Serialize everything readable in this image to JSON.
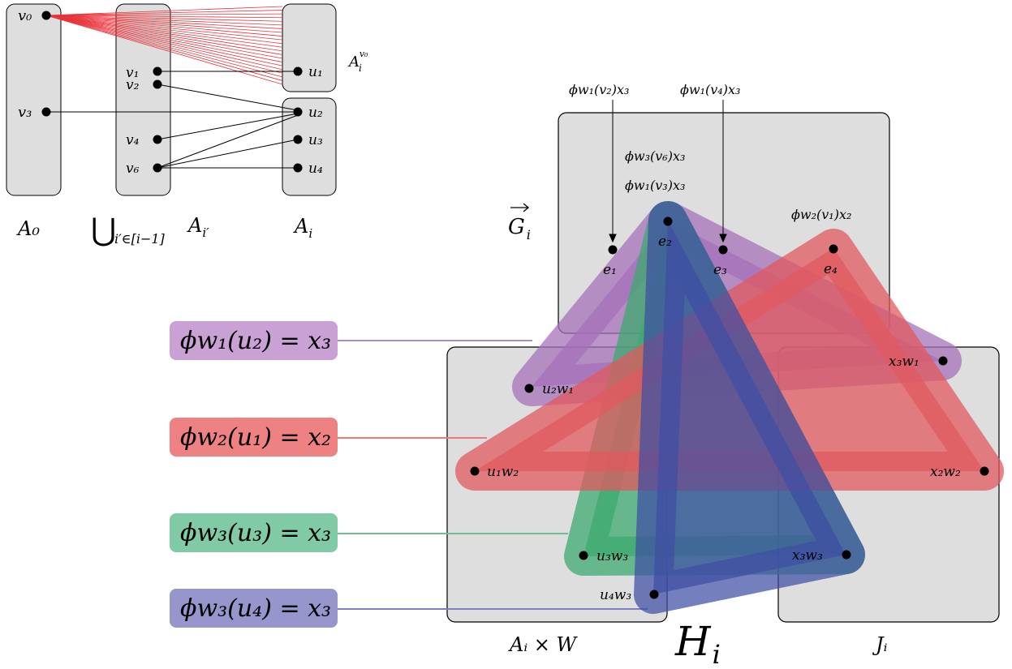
{
  "left_diagram": {
    "column_labels": {
      "a0": "A₀",
      "union_symbol": "⋃",
      "union_sub": "i′∈[i−1]",
      "union_main": "A",
      "union_main_sub": "i′",
      "ai": "A",
      "ai_sub": "i"
    },
    "a0_vertices": [
      "v₀",
      "v₃"
    ],
    "union_vertices": [
      "v₁",
      "v₂",
      "v₄",
      "v₆"
    ],
    "ai_vertices": [
      "u₁",
      "u₂",
      "u₃",
      "u₄"
    ],
    "aiv0_label": {
      "main": "A",
      "sub": "i",
      "sup": "v₀"
    },
    "fan_color": "#e8333a"
  },
  "right_diagram": {
    "gi_label": {
      "main": "G",
      "sub": "i"
    },
    "e_vertices": [
      "e₁",
      "e₂",
      "e₃",
      "e₄"
    ],
    "top_annotations": [
      "ϕw₁(v₂)x₃",
      "ϕw₁(v₄)x₃"
    ],
    "e2_annotations": [
      "ϕw₃(v₆)x₃",
      "ϕw₁(v₃)x₃"
    ],
    "e4_annotation": "ϕw₂(v₁)x₂",
    "aw_vertices": [
      "u₂w₁",
      "u₁w₂",
      "u₃w₃",
      "u₄w₃"
    ],
    "j_vertices": [
      "x₃w₁",
      "x₂w₂",
      "x₃w₃"
    ],
    "aw_label": "Aᵢ × W",
    "j_label": "Jᵢ",
    "h_label": {
      "main": "H",
      "sub": "i"
    }
  },
  "badges": [
    {
      "text": "ϕw₁(u₂) = x₃",
      "color": "#c9a1d4"
    },
    {
      "text": "ϕw₂(u₁) = x₂",
      "color": "#ee8282"
    },
    {
      "text": "ϕw₃(u₃) = x₃",
      "color": "#80caa5"
    },
    {
      "text": "ϕw₃(u₄) = x₃",
      "color": "#9696cc"
    }
  ],
  "colors": {
    "box_fill": "#dedede",
    "purple_edge": "#a672b9",
    "red_edge": "#e05a5f",
    "green_edge": "#3eaa70",
    "blue_edge": "#3e4ea3"
  }
}
